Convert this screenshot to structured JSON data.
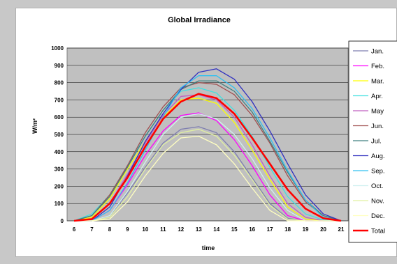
{
  "chart_data": {
    "type": "line",
    "title": "Global Irradiance",
    "xlabel": "time",
    "ylabel": "W/m²",
    "x": [
      6,
      7,
      8,
      9,
      10,
      11,
      12,
      13,
      14,
      15,
      16,
      17,
      18,
      19,
      20,
      21
    ],
    "xlim": [
      6,
      21
    ],
    "ylim": [
      0,
      1000
    ],
    "yticks": [
      0,
      100,
      200,
      300,
      400,
      500,
      600,
      700,
      800,
      900,
      1000
    ],
    "grid": true,
    "legend": "right",
    "plot_background": "#c0c0c0",
    "series": [
      {
        "name": "Jan.",
        "color": "#7f7fb0",
        "values": [
          0,
          0,
          30,
          160,
          310,
          450,
          530,
          545,
          510,
          400,
          250,
          100,
          15,
          0,
          0,
          0
        ]
      },
      {
        "name": "Feb.",
        "color": "#ff00ff",
        "values": [
          0,
          0,
          60,
          210,
          380,
          520,
          610,
          625,
          580,
          470,
          320,
          150,
          30,
          0,
          0,
          0
        ]
      },
      {
        "name": "Mar.",
        "color": "#ffff00",
        "values": [
          0,
          20,
          130,
          300,
          460,
          600,
          700,
          710,
          680,
          570,
          410,
          240,
          80,
          10,
          0,
          0
        ]
      },
      {
        "name": "Apr.",
        "color": "#40e0e0",
        "values": [
          0,
          40,
          150,
          320,
          490,
          640,
          750,
          770,
          740,
          640,
          490,
          310,
          140,
          40,
          5,
          0
        ]
      },
      {
        "name": "May",
        "color": "#c060c0",
        "values": [
          0,
          10,
          100,
          270,
          450,
          610,
          720,
          730,
          700,
          600,
          440,
          260,
          100,
          20,
          0,
          0
        ]
      },
      {
        "name": "Jun.",
        "color": "#a05050",
        "values": [
          0,
          30,
          150,
          320,
          510,
          660,
          770,
          800,
          790,
          730,
          610,
          450,
          260,
          110,
          30,
          0
        ]
      },
      {
        "name": "Jul.",
        "color": "#408080",
        "values": [
          0,
          30,
          140,
          310,
          490,
          640,
          760,
          810,
          810,
          750,
          630,
          460,
          280,
          120,
          30,
          0
        ]
      },
      {
        "name": "Aug.",
        "color": "#3030c0",
        "values": [
          0,
          0,
          80,
          260,
          460,
          620,
          760,
          860,
          880,
          820,
          690,
          520,
          330,
          150,
          40,
          0
        ]
      },
      {
        "name": "Sep.",
        "color": "#30c0f0",
        "values": [
          0,
          0,
          60,
          220,
          410,
          600,
          770,
          840,
          840,
          770,
          650,
          480,
          290,
          120,
          20,
          0
        ]
      },
      {
        "name": "Oct.",
        "color": "#d0f0f0",
        "values": [
          0,
          0,
          30,
          170,
          340,
          500,
          600,
          620,
          590,
          500,
          360,
          190,
          60,
          0,
          0,
          0
        ]
      },
      {
        "name": "Nov.",
        "color": "#e0f0a0",
        "values": [
          0,
          0,
          20,
          140,
          300,
          440,
          510,
          530,
          490,
          380,
          240,
          90,
          10,
          0,
          0,
          0
        ]
      },
      {
        "name": "Dec.",
        "color": "#ffffc0",
        "values": [
          0,
          0,
          10,
          110,
          260,
          390,
          480,
          490,
          440,
          330,
          190,
          60,
          0,
          0,
          0,
          0
        ]
      },
      {
        "name": "Total",
        "color": "#ff0000",
        "values": [
          0,
          10,
          100,
          250,
          430,
          590,
          690,
          735,
          710,
          620,
          480,
          330,
          180,
          70,
          15,
          0
        ]
      }
    ]
  }
}
